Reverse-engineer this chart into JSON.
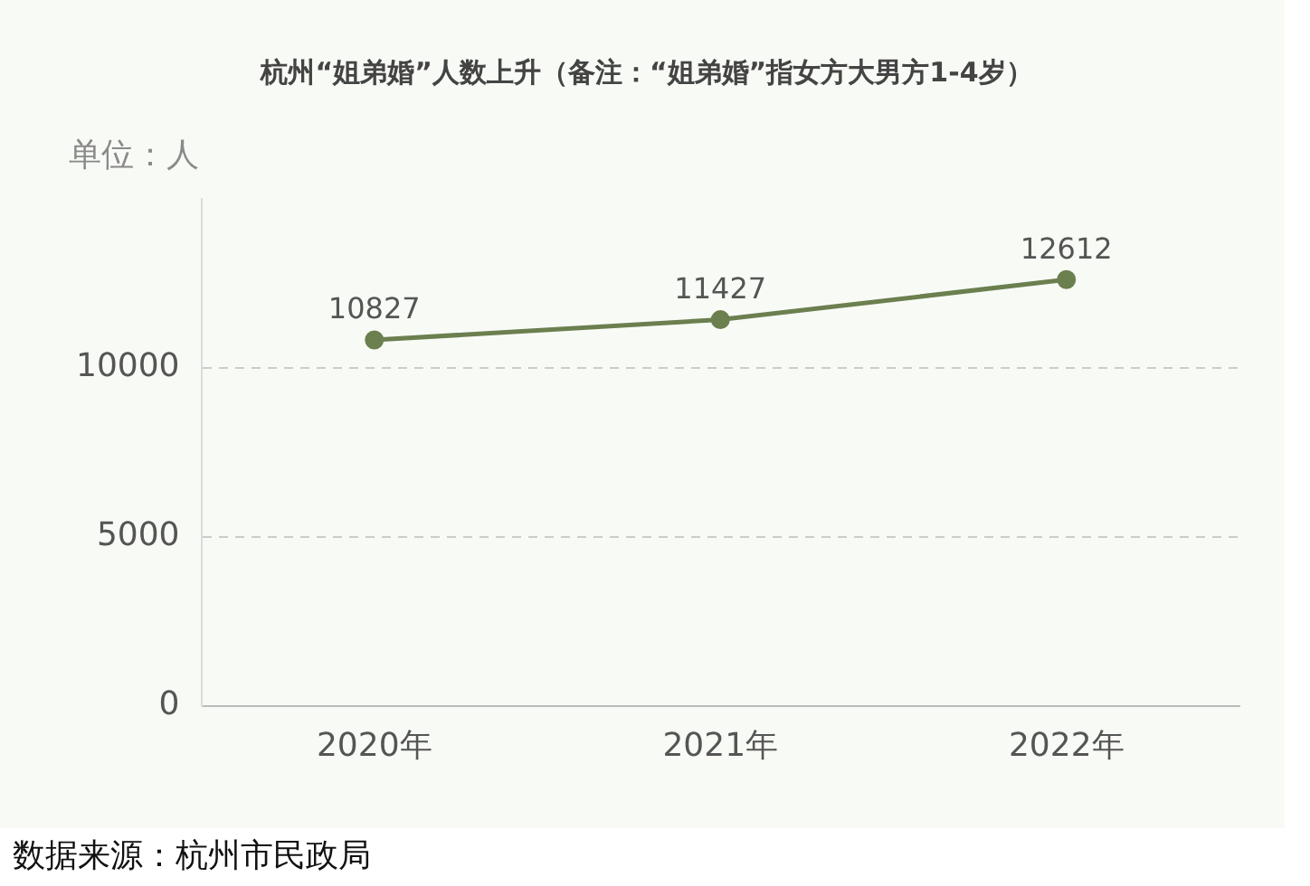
{
  "chart_data": {
    "type": "line",
    "title": "杭州“姐弟婚”人数上升（备注：“姐弟婚”指女方大男方1-4岁）",
    "ylabel": "单位：人",
    "categories": [
      "2020年",
      "2021年",
      "2022年"
    ],
    "series": [
      {
        "color": "#6b7f4f",
        "values": [
          10827,
          11427,
          12612
        ]
      }
    ],
    "ylim": [
      0,
      15000
    ],
    "yticks": [
      0,
      5000,
      10000
    ],
    "grid": "y",
    "legend": false,
    "marker": "circle",
    "line_style": "solid",
    "data_labels": true,
    "annotations": [
      "数据来源：杭州市民政局"
    ]
  }
}
